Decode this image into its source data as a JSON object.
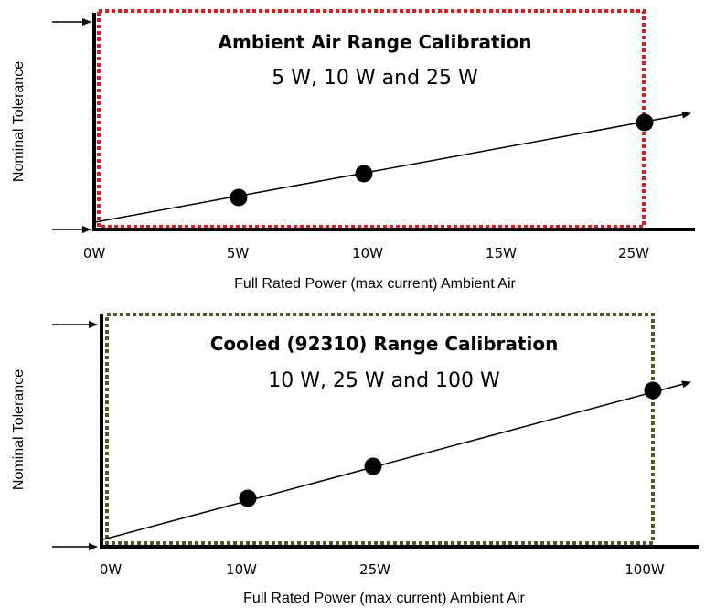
{
  "panels": [
    {
      "title": "Ambient Air Range Calibration",
      "subtitle": "5 W, 10 W and 25 W",
      "ylabel": "Nominal Tolerance",
      "xlabel": "Full Rated Power (max current) Ambient Air",
      "box_color": "#e31b1b",
      "ticks": [
        "0W",
        "5W",
        "10W",
        "15W",
        "25W"
      ],
      "point_labels": [
        "5W",
        "10W",
        "25W"
      ]
    },
    {
      "title": "Cooled (92310) Range Calibration",
      "subtitle": "10 W, 25 W and 100 W",
      "ylabel": "Nominal Tolerance",
      "xlabel": "Full Rated Power (max current) Ambient Air",
      "box_color": "#4f5a2a",
      "ticks": [
        "0W",
        "10W",
        "25W",
        "100W"
      ],
      "point_labels": [
        "10W",
        "25W",
        "100W"
      ]
    }
  ]
}
